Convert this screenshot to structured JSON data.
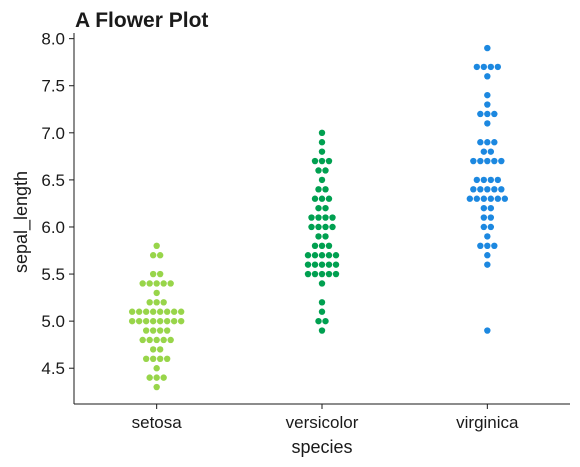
{
  "chart_data": {
    "type": "scatter",
    "subtype": "swarm",
    "title": "A Flower Plot",
    "xlabel": "species",
    "ylabel": "sepal_length",
    "categories": [
      "setosa",
      "versicolor",
      "virginica"
    ],
    "ylim": [
      4.12,
      8.06
    ],
    "yticks": [
      "4.5",
      "5.0",
      "5.5",
      "6.0",
      "6.5",
      "7.0",
      "7.5",
      "8.0"
    ],
    "grid": false,
    "legend": "none",
    "colors": [
      "#98d54a",
      "#00a050",
      "#1c88e0"
    ],
    "series": [
      {
        "values": [
          5.1,
          4.9,
          4.7,
          4.6,
          5.0,
          5.4,
          4.6,
          5.0,
          4.4,
          4.9,
          5.4,
          4.8,
          4.8,
          4.3,
          5.8,
          5.7,
          5.4,
          5.1,
          5.7,
          5.1,
          5.4,
          5.1,
          4.6,
          5.1,
          4.8,
          5.0,
          5.0,
          5.2,
          5.2,
          4.7,
          4.8,
          5.4,
          5.2,
          5.5,
          4.9,
          5.0,
          5.5,
          4.9,
          4.4,
          5.1,
          5.0,
          4.5,
          4.4,
          5.0,
          5.1,
          4.8,
          5.1,
          4.6,
          5.3,
          5.0
        ]
      },
      {
        "values": [
          7.0,
          6.4,
          6.9,
          5.5,
          6.5,
          5.7,
          6.3,
          4.9,
          6.6,
          5.2,
          5.0,
          5.9,
          6.0,
          6.1,
          5.6,
          6.7,
          5.6,
          5.8,
          6.2,
          5.6,
          5.9,
          6.1,
          6.3,
          6.1,
          6.4,
          6.6,
          6.8,
          6.7,
          6.0,
          5.7,
          5.5,
          5.5,
          5.8,
          6.0,
          5.4,
          6.0,
          6.7,
          6.3,
          5.6,
          5.5,
          5.5,
          6.1,
          5.8,
          5.0,
          5.6,
          5.7,
          5.7,
          6.2,
          5.1,
          5.7
        ]
      },
      {
        "values": [
          6.3,
          5.8,
          7.1,
          6.3,
          6.5,
          7.6,
          4.9,
          7.3,
          6.7,
          7.2,
          6.5,
          6.4,
          6.8,
          5.7,
          5.8,
          6.4,
          6.5,
          7.7,
          7.7,
          6.0,
          6.9,
          5.6,
          7.7,
          6.3,
          6.7,
          7.2,
          6.2,
          6.1,
          6.4,
          7.2,
          7.4,
          7.9,
          6.4,
          6.3,
          6.1,
          7.7,
          6.3,
          6.4,
          6.0,
          6.9,
          6.7,
          6.9,
          5.8,
          6.8,
          6.7,
          6.7,
          6.3,
          6.5,
          6.2,
          5.9
        ]
      }
    ]
  }
}
